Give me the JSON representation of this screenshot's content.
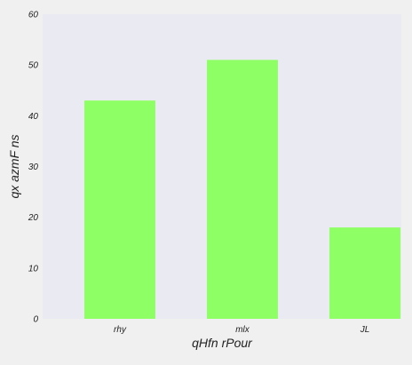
{
  "chart_data": {
    "type": "bar",
    "categories": [
      "rhy",
      "mlx",
      "JL"
    ],
    "values": [
      43,
      51,
      18
    ],
    "title": "",
    "xlabel": "qHfn rPour",
    "ylabel": "qx azmF ns",
    "ylim": [
      0,
      60
    ],
    "yticks": [
      0,
      10,
      20,
      30,
      40,
      50,
      60
    ],
    "grid": false,
    "legend": "none",
    "colors": {
      "bar": "#8fff66",
      "plot_background": "#eaeaf2",
      "figure_background": "#f0f0f0",
      "text": "#222222"
    }
  }
}
